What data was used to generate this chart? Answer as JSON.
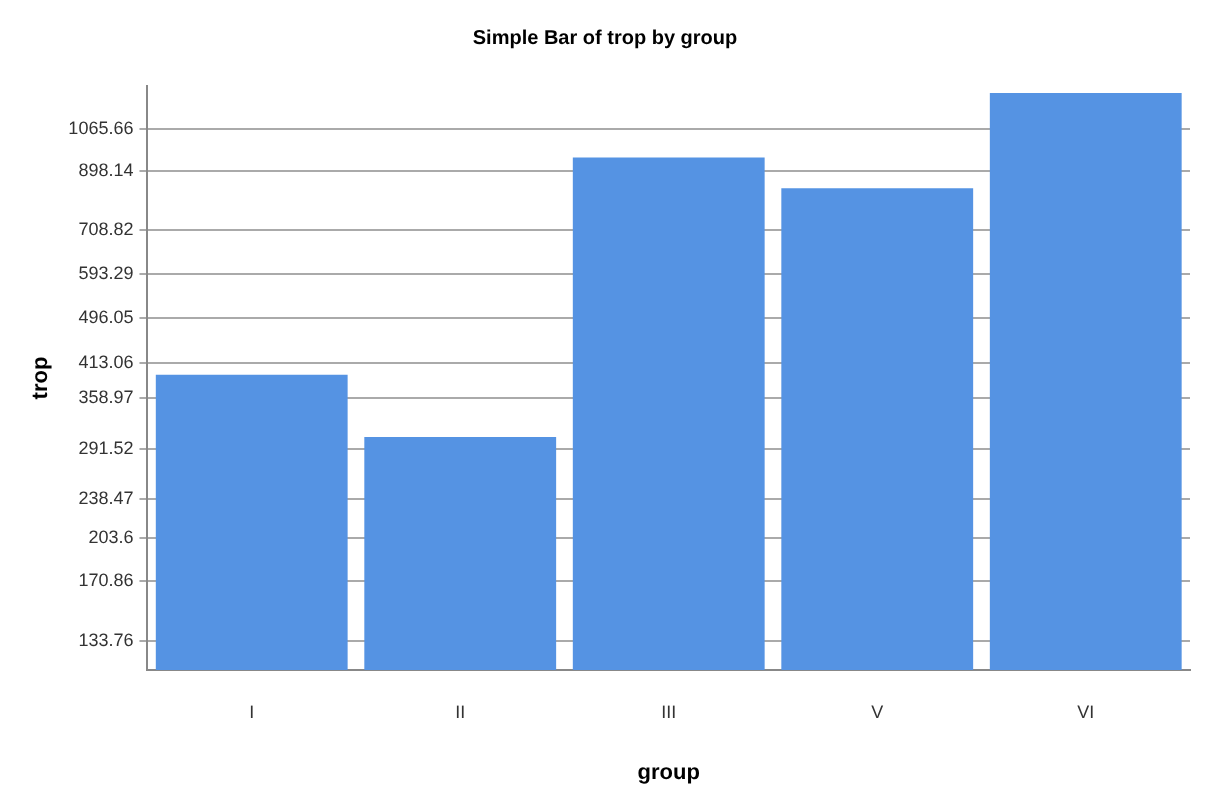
{
  "chart_data": {
    "type": "bar",
    "title": "Simple Bar of trop by group",
    "xlabel": "group",
    "ylabel": "trop",
    "categories": [
      "I",
      "II",
      "III",
      "V",
      "VI"
    ],
    "values": [
      394,
      306,
      950,
      839,
      1234
    ],
    "color": "#5593e3",
    "log": "y",
    "ylim": [
      119,
      1270
    ],
    "yticks": [
      133.76,
      170.86,
      203.6,
      238.47,
      291.52,
      358.97,
      413.06,
      496.05,
      593.29,
      708.82,
      898.14,
      1065.66
    ],
    "grid": "y",
    "legend": false
  }
}
